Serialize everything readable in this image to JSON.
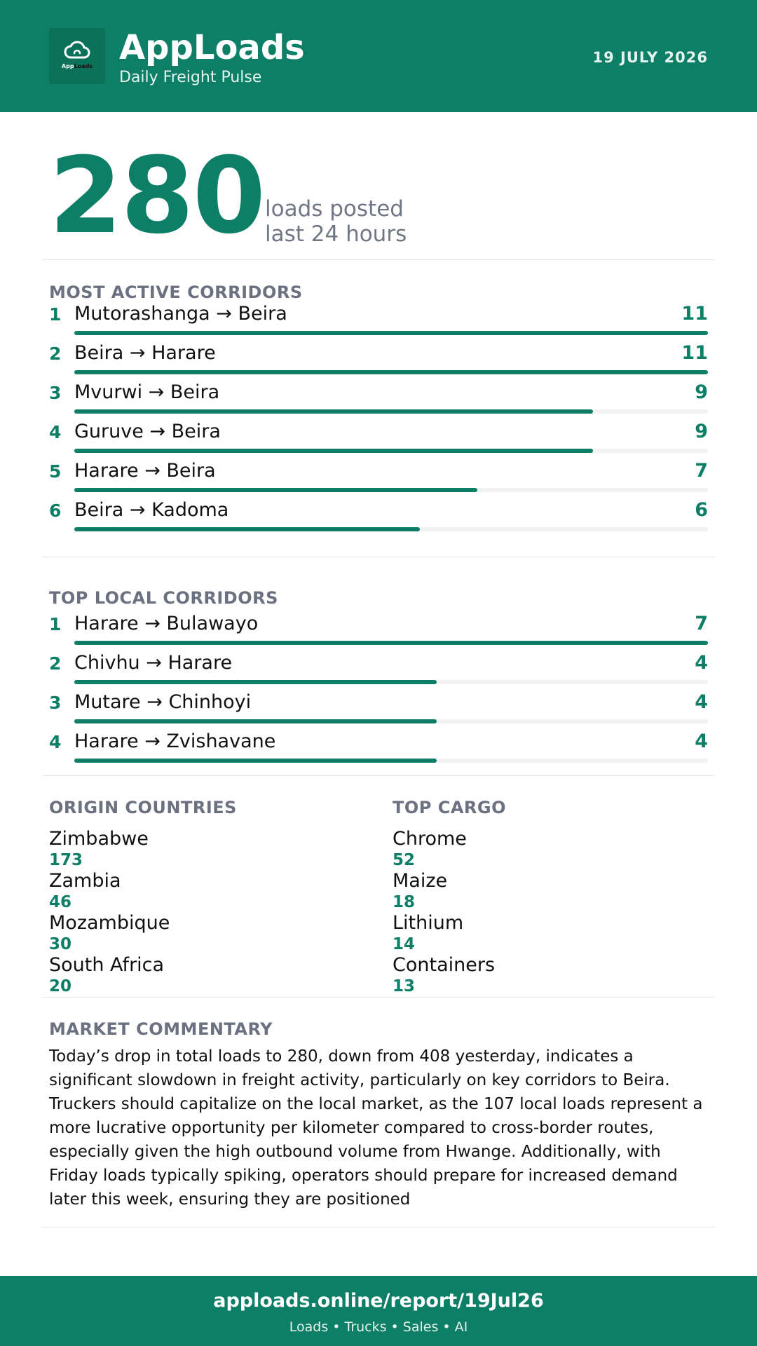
{
  "header": {
    "logo_icon": "cloud-icon",
    "logo_text_a": "App",
    "logo_text_b": "Loads",
    "title": "AppLoads",
    "subtitle": "Daily Freight Pulse",
    "date": "19 JULY 2026"
  },
  "hero": {
    "value": "280",
    "label_line1": "loads posted",
    "label_line2": "last 24 hours"
  },
  "active_corridors": {
    "title": "MOST ACTIVE CORRIDORS",
    "max": 11,
    "items": [
      {
        "rank": "1",
        "route": "Mutorashanga → Beira",
        "count": 11
      },
      {
        "rank": "2",
        "route": "Beira → Harare",
        "count": 11
      },
      {
        "rank": "3",
        "route": "Mvurwi → Beira",
        "count": 9
      },
      {
        "rank": "4",
        "route": "Guruve → Beira",
        "count": 9
      },
      {
        "rank": "5",
        "route": "Harare → Beira",
        "count": 7
      },
      {
        "rank": "6",
        "route": "Beira → Kadoma",
        "count": 6
      }
    ]
  },
  "local_corridors": {
    "title": "TOP LOCAL CORRIDORS",
    "max": 7,
    "items": [
      {
        "rank": "1",
        "route": "Harare → Bulawayo",
        "count": 7
      },
      {
        "rank": "2",
        "route": "Chivhu → Harare",
        "count": 4
      },
      {
        "rank": "3",
        "route": "Mutare → Chinhoyi",
        "count": 4
      },
      {
        "rank": "4",
        "route": "Harare → Zvishavane",
        "count": 4
      }
    ]
  },
  "origin_countries": {
    "title": "ORIGIN COUNTRIES",
    "items": [
      {
        "name": "Zimbabwe",
        "value": "173"
      },
      {
        "name": "Zambia",
        "value": "46"
      },
      {
        "name": "Mozambique",
        "value": "30"
      },
      {
        "name": "South Africa",
        "value": "20"
      }
    ]
  },
  "top_cargo": {
    "title": "TOP CARGO",
    "items": [
      {
        "name": "Chrome",
        "value": "52"
      },
      {
        "name": "Maize",
        "value": "18"
      },
      {
        "name": "Lithium",
        "value": "14"
      },
      {
        "name": "Containers",
        "value": "13"
      }
    ]
  },
  "commentary": {
    "title": "MARKET COMMENTARY",
    "text": "Today’s drop in total loads to 280, down from 408 yesterday, indicates a significant slowdown in freight activity, particularly on key corridors to Beira. Truckers should capitalize on the local market, as the 107 local loads represent a more lucrative opportunity per kilometer compared to cross-border routes, especially given the high outbound volume from Hwange. Additionally, with Friday loads typically spiking, operators should prepare for increased demand later this week, ensuring they are positioned"
  },
  "footer": {
    "url": "apploads.online/report/19Jul26",
    "tagline": "Loads • Trucks • Sales • AI"
  },
  "colors": {
    "brand": "#0d7f66",
    "muted": "#6b7180",
    "track": "#f2f2f2"
  }
}
